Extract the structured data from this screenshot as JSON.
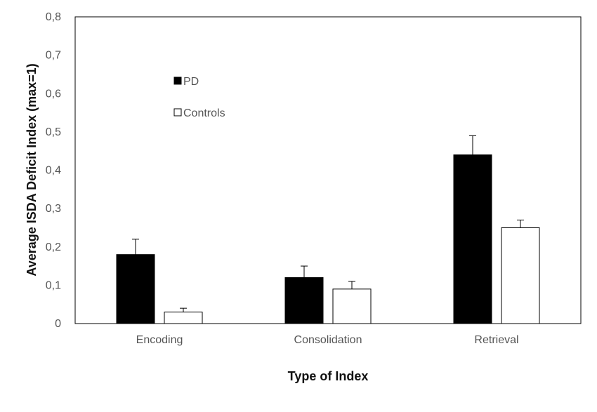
{
  "chart_data": {
    "type": "bar",
    "categories": [
      "Encoding",
      "Consolidation",
      "Retrieval"
    ],
    "series": [
      {
        "name": "PD",
        "values": [
          0.18,
          0.12,
          0.44
        ],
        "errors": [
          0.04,
          0.03,
          0.05
        ],
        "color": "#000000"
      },
      {
        "name": "Controls",
        "values": [
          0.03,
          0.09,
          0.25
        ],
        "errors": [
          0.01,
          0.02,
          0.02
        ],
        "color": "#ffffff"
      }
    ],
    "xlabel": "Type of Index",
    "ylabel": "Average ISDA Deficit Index (max=1)",
    "ylim": [
      0,
      0.8
    ],
    "yticks": [
      "0",
      "0,1",
      "0,2",
      "0,3",
      "0,4",
      "0,5",
      "0,6",
      "0,7",
      "0,8"
    ],
    "grid": false,
    "legend": "top-left inside"
  }
}
